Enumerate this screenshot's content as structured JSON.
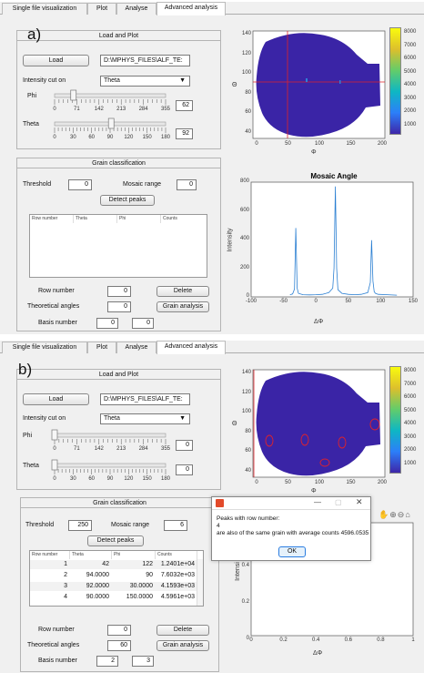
{
  "tabs": [
    "Single file visualization",
    "Plot",
    "Analyse",
    "Advanced analysis"
  ],
  "panelA": {
    "label": "a)",
    "load_group_title": "Load and Plot",
    "load_button": "Load",
    "path": "D:\\MPHYS_FILES\\ALF_TE:",
    "intensity_label": "Intensity cut on",
    "intensity_value": "Theta",
    "phi_label": "Phi",
    "phi_ticks": [
      "0",
      "71",
      "142",
      "213",
      "284",
      "355"
    ],
    "phi_value": "62",
    "phi_level_fraction": 0.17,
    "theta_label": "Theta",
    "theta_ticks": [
      "0",
      "30",
      "60",
      "90",
      "120",
      "150",
      "180"
    ],
    "theta_value": "92",
    "theta_level_fraction": 0.51,
    "grain_title": "Grain classification",
    "threshold_label": "Threshold",
    "threshold_value": "0",
    "mosaic_label": "Mosaic range",
    "mosaic_value": "0",
    "detect_button": "Detect peaks",
    "table_headers": [
      "Row number",
      "Theta",
      "Phi",
      "Counts"
    ],
    "row_number_label": "Row number",
    "row_number_value": "0",
    "delete_button": "Delete",
    "theoretical_label": "Theoretical angles",
    "theoretical_value": "0",
    "grain_button": "Grain analysis",
    "basis_label": "Basis number",
    "basis_values": [
      "0",
      "0"
    ],
    "map": {
      "ylabel": "Θ",
      "xlabel": "Φ",
      "yticks": [
        "140",
        "120",
        "100",
        "80",
        "60",
        "40"
      ],
      "xticks": [
        "0",
        "50",
        "100",
        "150",
        "200"
      ],
      "colorbar_ticks": [
        "8000",
        "7000",
        "6000",
        "5000",
        "4000",
        "3000",
        "2000",
        "1000"
      ]
    },
    "plot": {
      "title": "Mosaic Angle",
      "ylabel": "Intensity",
      "xlabel": "ΔΦ",
      "yticks": [
        "800",
        "600",
        "400",
        "200",
        "0"
      ],
      "xticks": [
        "-100",
        "-50",
        "0",
        "50",
        "100",
        "150"
      ]
    }
  },
  "panelB": {
    "label": "b)",
    "load_group_title": "Load and Plot",
    "load_button": "Load",
    "path": "D:\\MPHYS_FILES\\ALF_TE:",
    "intensity_label": "Intensity cut on",
    "intensity_value": "Theta",
    "phi_label": "Phi",
    "phi_ticks": [
      "0",
      "71",
      "142",
      "213",
      "284",
      "355"
    ],
    "phi_value": "0",
    "phi_level_fraction": 0.0,
    "theta_label": "Theta",
    "theta_ticks": [
      "0",
      "30",
      "60",
      "90",
      "120",
      "150",
      "180"
    ],
    "theta_value": "0",
    "theta_level_fraction": 0.0,
    "grain_title": "Grain classification",
    "threshold_label": "Threshold",
    "threshold_value": "250",
    "mosaic_label": "Mosaic range",
    "mosaic_value": "6",
    "detect_button": "Detect peaks",
    "table_headers": [
      "Row number",
      "Theta",
      "Phi",
      "Counts"
    ],
    "table_rows": [
      [
        "1",
        "42",
        "122",
        "1.2401e+04"
      ],
      [
        "2",
        "94.0000",
        "90",
        "7.6032e+03"
      ],
      [
        "3",
        "92.0000",
        "30.0000",
        "4.1593e+03"
      ],
      [
        "4",
        "90.0000",
        "150.0000",
        "4.5961e+03"
      ]
    ],
    "row_number_label": "Row number",
    "row_number_value": "0",
    "delete_button": "Delete",
    "theoretical_label": "Theoretical angles",
    "theoretical_value": "60",
    "grain_button": "Grain analysis",
    "basis_label": "Basis number",
    "basis_values": [
      "2",
      "3"
    ],
    "map": {
      "ylabel": "Θ",
      "xlabel": "Φ",
      "yticks": [
        "140",
        "120",
        "100",
        "80",
        "60",
        "40"
      ],
      "xticks": [
        "0",
        "50",
        "100",
        "150",
        "200"
      ],
      "colorbar_ticks": [
        "8000",
        "7000",
        "6000",
        "5000",
        "4000",
        "3000",
        "2000",
        "1000"
      ]
    },
    "plot": {
      "ylabel": "Intensi",
      "xlabel": "ΔΦ",
      "yticks": [
        "0.4",
        "0.2",
        "0"
      ],
      "xticks": [
        "0",
        "0.2",
        "0.4",
        "0.6",
        "0.8",
        "1"
      ]
    },
    "dialog": {
      "message_line1": "Peaks with row number:",
      "message_line2": "4",
      "message_line3": "are also of the same grain with average counts 4596.0535",
      "ok_button": "OK"
    }
  },
  "chart_data": [
    {
      "type": "line",
      "title": "Mosaic Angle",
      "xlabel": "ΔΦ",
      "ylabel": "Intensity",
      "xlim": [
        -100,
        150
      ],
      "ylim": [
        0,
        800
      ],
      "x": [
        -40,
        -36,
        -33,
        -31,
        -29,
        -27,
        -24,
        -20,
        -10,
        0,
        10,
        20,
        26,
        28,
        30,
        32,
        34,
        40,
        50,
        60,
        70,
        80,
        84,
        86,
        88,
        90,
        92,
        96,
        110,
        125
      ],
      "y": [
        15,
        20,
        55,
        480,
        60,
        25,
        20,
        15,
        14,
        15,
        18,
        30,
        60,
        200,
        770,
        200,
        50,
        25,
        18,
        15,
        18,
        30,
        100,
        395,
        110,
        35,
        25,
        18,
        15,
        12
      ],
      "color": "#2a7fd2"
    },
    {
      "type": "line",
      "xlabel": "ΔΦ",
      "xlim": [
        0,
        1
      ],
      "ylim": [
        0,
        1
      ],
      "x": [],
      "y": []
    }
  ],
  "colors": {
    "accent_blue": "#3e26a8",
    "map_marker": "#e0222a",
    "line": "#2a7fd2"
  }
}
